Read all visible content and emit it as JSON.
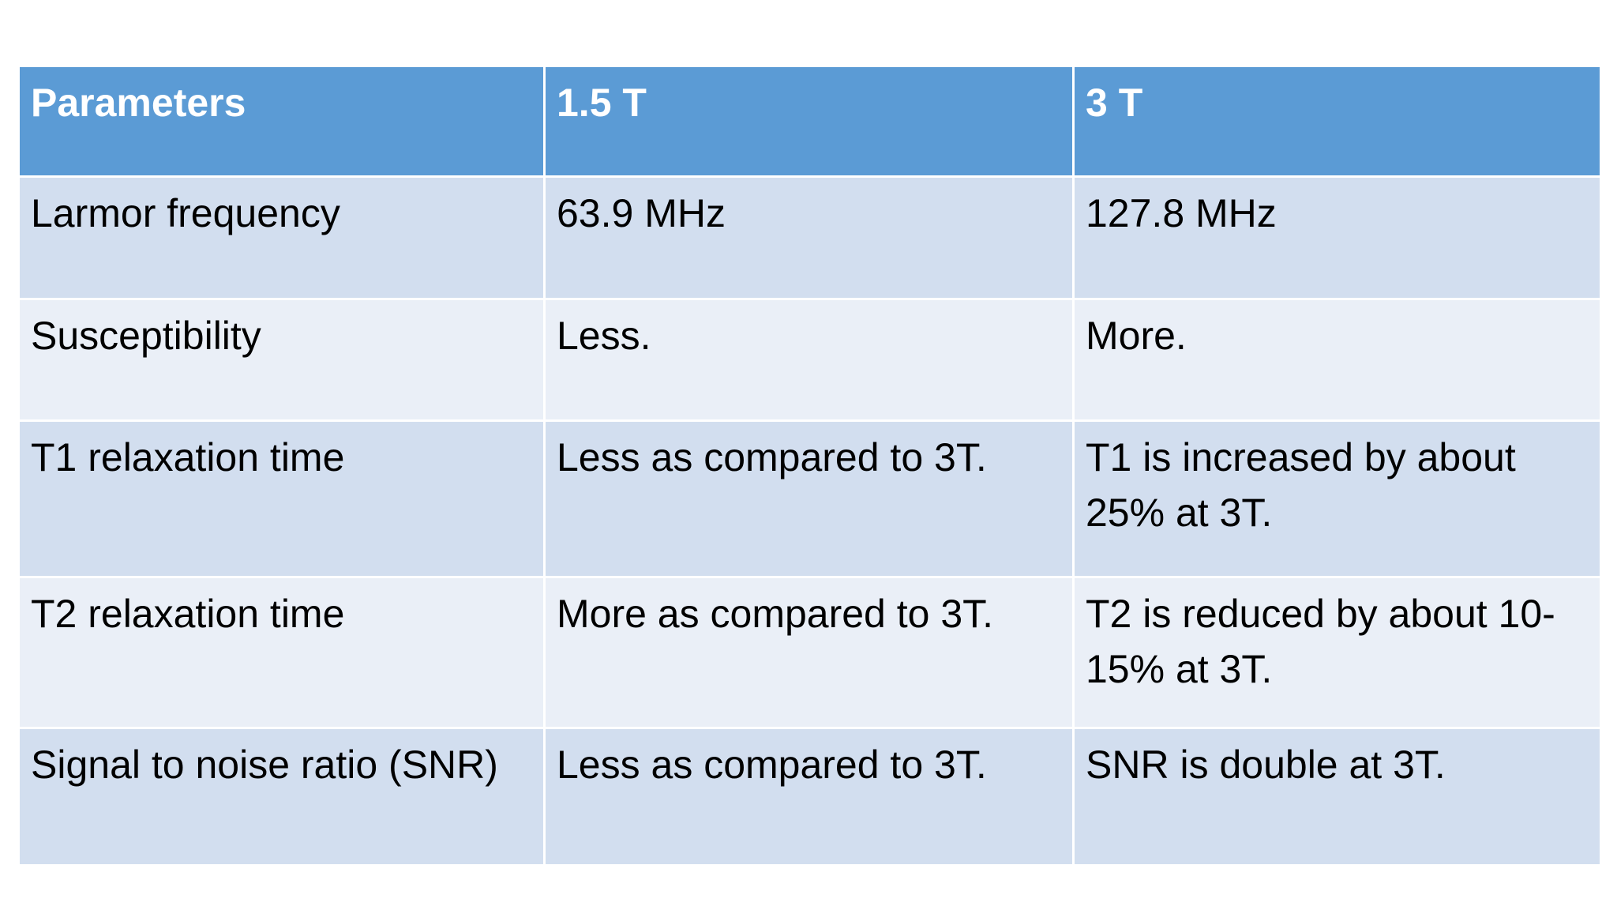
{
  "table": {
    "header": [
      "Parameters",
      "1.5 T",
      "3 T"
    ],
    "rows": [
      [
        "Larmor frequency",
        "63.9 MHz",
        "127.8 MHz"
      ],
      [
        "Susceptibility",
        "Less.",
        "More."
      ],
      [
        "T1 relaxation time",
        "Less as compared to 3T.",
        "T1 is increased by about 25% at 3T."
      ],
      [
        "T2 relaxation time",
        "More as compared to 3T.",
        "T2 is reduced by about 10-15% at 3T."
      ],
      [
        "Signal to noise ratio (SNR)",
        "Less as compared to 3T.",
        "SNR is double at 3T."
      ]
    ]
  }
}
